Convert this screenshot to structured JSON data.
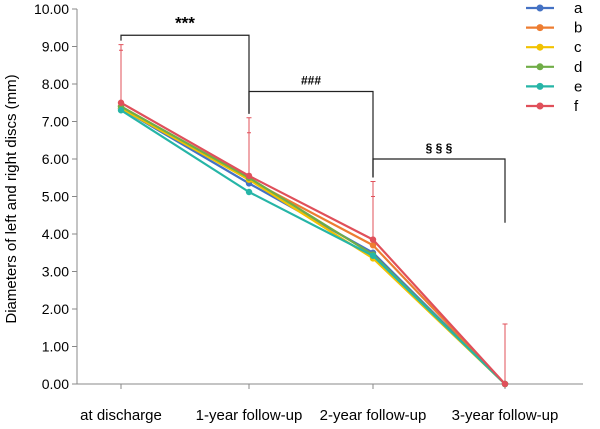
{
  "chart_data": {
    "type": "line",
    "ylabel": "Diameters of left and right discs (mm)",
    "xlabel": "",
    "categories": [
      "at discharge",
      "1-year follow-up",
      "2-year follow-up",
      "3-year follow-up"
    ],
    "ylim": [
      0,
      10
    ],
    "yticks": [
      "0.00",
      "1.00",
      "2.00",
      "3.00",
      "4.00",
      "5.00",
      "6.00",
      "7.00",
      "8.00",
      "9.00",
      "10.00"
    ],
    "grid": false,
    "legend_position": "top-right",
    "series": [
      {
        "name": "a",
        "color": "#4472C4",
        "values": [
          7.35,
          5.35,
          3.5,
          0
        ]
      },
      {
        "name": "b",
        "color": "#ED7D31",
        "values": [
          7.4,
          5.45,
          3.7,
          0
        ]
      },
      {
        "name": "c",
        "color": "#F2C200",
        "values": [
          7.35,
          5.45,
          3.35,
          0
        ]
      },
      {
        "name": "d",
        "color": "#70AD47",
        "values": [
          7.4,
          5.5,
          3.45,
          0
        ]
      },
      {
        "name": "e",
        "color": "#26B5A7",
        "values": [
          7.3,
          5.12,
          3.42,
          0
        ]
      },
      {
        "name": "f",
        "color": "#E0505A",
        "values": [
          7.5,
          5.55,
          3.85,
          0
        ]
      }
    ],
    "error_bars": {
      "color": "#E0505A",
      "upper": [
        9.05,
        7.1,
        5.4,
        1.6
      ],
      "lower": [
        8.9,
        6.7,
        5.0,
        0
      ]
    },
    "annotations": [
      {
        "label": "***",
        "from_index": 0,
        "to_index": 1,
        "bracket_y": 9.3
      },
      {
        "label": "###",
        "from_index": 1,
        "to_index": 2,
        "bracket_y": 7.8
      },
      {
        "label": "§ § §",
        "from_index": 2,
        "to_index": 3,
        "bracket_y": 6.0
      }
    ]
  }
}
